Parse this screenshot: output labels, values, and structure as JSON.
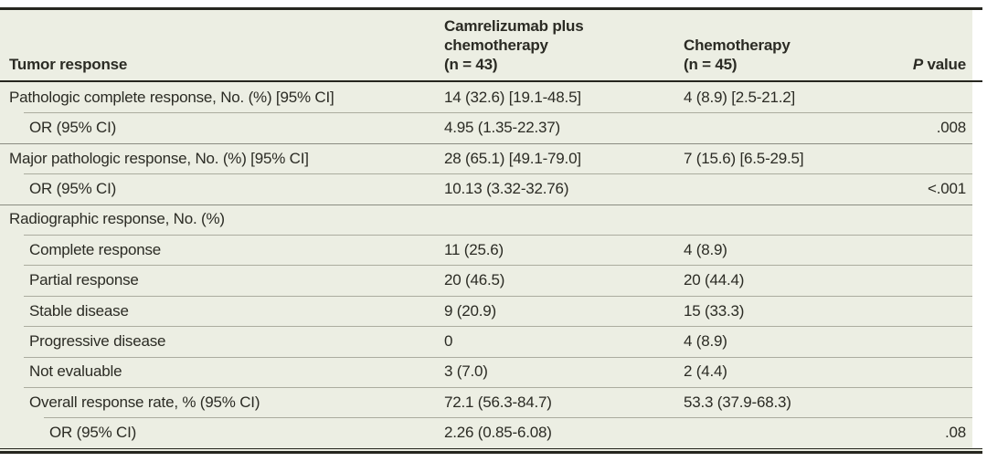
{
  "colors": {
    "table_background": "#ECEEE3",
    "dark_rule": "#26261F",
    "group_separator": "#8B8C82",
    "child_separator": "#ABAC9F",
    "text": "#2B2B24"
  },
  "header": {
    "tumor_response": "Tumor response",
    "camrelizumab_lines": [
      "Camrelizumab plus",
      "chemotherapy",
      "(n = 43)"
    ],
    "chemotherapy_lines": [
      "Chemotherapy",
      "(n = 45)"
    ],
    "p_value_italic": "P",
    "p_value_rest": " value"
  },
  "rows": [
    {
      "label": "Pathologic complete response, No. (%) [95% CI]",
      "camrelizumab": "14 (32.6) [19.1-48.5]",
      "chemotherapy": "4 (8.9) [2.5-21.2]",
      "p": ""
    },
    {
      "label": "OR (95% CI)",
      "camrelizumab": "4.95 (1.35-22.37)",
      "chemotherapy": "",
      "p": ".008"
    },
    {
      "label": "Major pathologic response, No. (%) [95% CI]",
      "camrelizumab": "28 (65.1) [49.1-79.0]",
      "chemotherapy": "7 (15.6) [6.5-29.5]",
      "p": ""
    },
    {
      "label": "OR (95% CI)",
      "camrelizumab": "10.13 (3.32-32.76)",
      "chemotherapy": "",
      "p": "<.001"
    },
    {
      "label": "Radiographic response, No. (%)",
      "camrelizumab": "",
      "chemotherapy": "",
      "p": ""
    },
    {
      "label": "Complete response",
      "camrelizumab": "11 (25.6)",
      "chemotherapy": "4 (8.9)",
      "p": ""
    },
    {
      "label": "Partial response",
      "camrelizumab": "20 (46.5)",
      "chemotherapy": "20 (44.4)",
      "p": ""
    },
    {
      "label": "Stable disease",
      "camrelizumab": "9 (20.9)",
      "chemotherapy": "15 (33.3)",
      "p": ""
    },
    {
      "label": "Progressive disease",
      "camrelizumab": "0",
      "chemotherapy": "4 (8.9)",
      "p": ""
    },
    {
      "label": "Not evaluable",
      "camrelizumab": "3 (7.0)",
      "chemotherapy": "2 (4.4)",
      "p": ""
    },
    {
      "label": "Overall response rate, % (95% CI)",
      "camrelizumab": "72.1 (56.3-84.7)",
      "chemotherapy": "53.3 (37.9-68.3)",
      "p": ""
    },
    {
      "label": "OR (95% CI)",
      "camrelizumab": "2.26 (0.85-6.08)",
      "chemotherapy": "",
      "p": ".08"
    }
  ]
}
